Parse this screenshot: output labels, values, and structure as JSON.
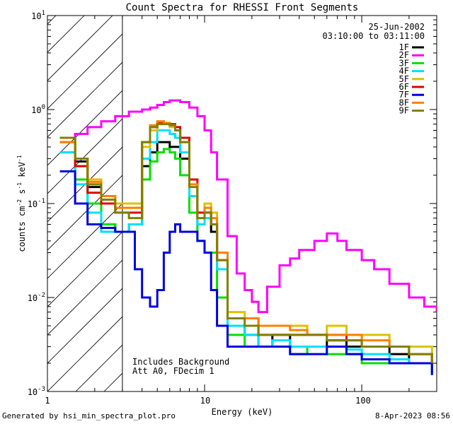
{
  "chart_data": {
    "type": "line",
    "title": "Count Spectra for RHESSI Front Segments",
    "xlabel": "Energy (keV)",
    "ylabel": "counts cm-2 s-1 keV-1",
    "xscale": "log",
    "yscale": "log",
    "xlim": [
      1,
      300
    ],
    "ylim": [
      0.001,
      10
    ],
    "x_tick_labels": [
      "1",
      "10",
      "100"
    ],
    "y_tick_labels": [
      "10-3",
      "10-2",
      "10-1",
      "100",
      "101"
    ],
    "date": "25-Jun-2002",
    "time_range": "03:10:00 to 03:11:00",
    "annotation_lines": [
      "Includes Background",
      "Att A0, FDecim 1"
    ],
    "hatched_range": [
      1,
      3
    ],
    "series": [
      {
        "name": "1F",
        "color": "#000000",
        "x": [
          1.2,
          1.5,
          1.8,
          2.2,
          2.7,
          3.3,
          4.0,
          4.5,
          5.0,
          5.5,
          6.0,
          6.5,
          7.0,
          8.0,
          9.0,
          10.0,
          11.0,
          12.0,
          14,
          18,
          22,
          27,
          35,
          45,
          60,
          80,
          100,
          150,
          200,
          280
        ],
        "y": [
          0.5,
          0.28,
          0.15,
          0.06,
          0.05,
          0.06,
          0.25,
          0.35,
          0.45,
          0.45,
          0.4,
          0.4,
          0.3,
          0.12,
          0.06,
          0.08,
          0.05,
          0.02,
          0.005,
          0.004,
          0.003,
          0.004,
          0.003,
          0.003,
          0.0035,
          0.003,
          0.003,
          0.0025,
          0.002,
          0.0015
        ]
      },
      {
        "name": "2F",
        "color": "#ff00ff",
        "x": [
          1.2,
          1.5,
          1.8,
          2.2,
          2.7,
          3.3,
          4.0,
          4.5,
          5.0,
          5.5,
          6.0,
          6.5,
          7.0,
          8.0,
          9.0,
          10.0,
          11.0,
          12.0,
          14,
          16,
          18,
          20,
          22,
          25,
          30,
          35,
          40,
          50,
          60,
          70,
          80,
          100,
          120,
          150,
          200,
          250,
          300
        ],
        "y": [
          0.5,
          0.55,
          0.65,
          0.75,
          0.85,
          0.95,
          1.0,
          1.05,
          1.12,
          1.2,
          1.25,
          1.25,
          1.2,
          1.05,
          0.85,
          0.6,
          0.35,
          0.18,
          0.045,
          0.018,
          0.012,
          0.009,
          0.007,
          0.013,
          0.022,
          0.026,
          0.032,
          0.04,
          0.048,
          0.04,
          0.032,
          0.025,
          0.02,
          0.014,
          0.01,
          0.008,
          0.007
        ]
      },
      {
        "name": "3F",
        "color": "#00e000",
        "x": [
          1.2,
          1.5,
          1.8,
          2.2,
          2.7,
          3.3,
          4.0,
          4.5,
          5.0,
          5.5,
          6.0,
          6.5,
          7.0,
          8.0,
          9.0,
          10.0,
          11.0,
          12.0,
          14,
          18,
          22,
          27,
          35,
          45,
          60,
          80,
          100,
          150,
          200,
          280
        ],
        "y": [
          0.35,
          0.18,
          0.1,
          0.06,
          0.05,
          0.06,
          0.18,
          0.28,
          0.35,
          0.38,
          0.35,
          0.3,
          0.2,
          0.08,
          0.04,
          0.03,
          0.03,
          0.01,
          0.004,
          0.003,
          0.003,
          0.003,
          0.0025,
          0.003,
          0.0025,
          0.0025,
          0.002,
          0.002,
          0.002,
          0.0015
        ]
      },
      {
        "name": "4F",
        "color": "#00e0ff",
        "x": [
          1.2,
          1.5,
          1.8,
          2.2,
          2.7,
          3.3,
          4.0,
          4.5,
          5.0,
          5.5,
          6.0,
          6.5,
          7.0,
          8.0,
          9.0,
          10.0,
          11.0,
          12.0,
          14,
          18,
          22,
          27,
          35,
          45,
          60,
          80,
          100,
          150,
          200,
          280
        ],
        "y": [
          0.35,
          0.16,
          0.08,
          0.05,
          0.05,
          0.06,
          0.3,
          0.45,
          0.6,
          0.6,
          0.55,
          0.5,
          0.35,
          0.12,
          0.06,
          0.07,
          0.06,
          0.02,
          0.005,
          0.004,
          0.003,
          0.0035,
          0.003,
          0.003,
          0.003,
          0.0028,
          0.0025,
          0.0022,
          0.002,
          0.0015
        ]
      },
      {
        "name": "5F",
        "color": "#e0c000",
        "x": [
          1.2,
          1.5,
          1.8,
          2.2,
          2.7,
          3.3,
          4.0,
          4.5,
          5.0,
          5.5,
          6.0,
          6.5,
          7.0,
          8.0,
          9.0,
          10.0,
          11.0,
          12.0,
          14,
          18,
          22,
          27,
          35,
          45,
          60,
          80,
          100,
          150,
          200,
          280
        ],
        "y": [
          0.45,
          0.3,
          0.18,
          0.12,
          0.1,
          0.1,
          0.4,
          0.6,
          0.7,
          0.7,
          0.65,
          0.6,
          0.45,
          0.16,
          0.08,
          0.1,
          0.08,
          0.03,
          0.007,
          0.006,
          0.005,
          0.005,
          0.005,
          0.004,
          0.005,
          0.004,
          0.004,
          0.003,
          0.003,
          0.002
        ]
      },
      {
        "name": "6F",
        "color": "#e00000",
        "x": [
          1.2,
          1.5,
          1.8,
          2.2,
          2.7,
          3.3,
          4.0,
          4.5,
          5.0,
          5.5,
          6.0,
          6.5,
          7.0,
          8.0,
          9.0,
          10.0,
          11.0,
          12.0,
          14,
          18,
          22,
          27,
          35,
          45,
          60,
          80,
          100,
          150,
          200,
          280
        ],
        "y": [
          0.45,
          0.25,
          0.13,
          0.1,
          0.08,
          0.08,
          0.45,
          0.65,
          0.72,
          0.72,
          0.7,
          0.65,
          0.5,
          0.18,
          0.08,
          0.08,
          0.06,
          0.025,
          0.006,
          0.006,
          0.004,
          0.004,
          0.004,
          0.004,
          0.004,
          0.0035,
          0.003,
          0.003,
          0.0025,
          0.002
        ]
      },
      {
        "name": "7F",
        "color": "#0000e0",
        "x": [
          1.2,
          1.5,
          1.8,
          2.2,
          2.7,
          3.3,
          3.6,
          4.0,
          4.5,
          5.0,
          5.5,
          6.0,
          6.5,
          7.0,
          8.0,
          9.0,
          10.0,
          11.0,
          12.0,
          14,
          18,
          22,
          27,
          35,
          45,
          60,
          80,
          100,
          150,
          200,
          280
        ],
        "y": [
          0.22,
          0.1,
          0.06,
          0.055,
          0.05,
          0.05,
          0.02,
          0.01,
          0.008,
          0.012,
          0.03,
          0.05,
          0.06,
          0.05,
          0.05,
          0.04,
          0.03,
          0.012,
          0.005,
          0.003,
          0.003,
          0.003,
          0.003,
          0.0025,
          0.0025,
          0.003,
          0.0025,
          0.0022,
          0.002,
          0.002,
          0.0015
        ]
      },
      {
        "name": "8F",
        "color": "#ff8000",
        "x": [
          1.2,
          1.5,
          1.8,
          2.2,
          2.7,
          3.3,
          4.0,
          4.5,
          5.0,
          5.5,
          6.0,
          6.5,
          7.0,
          8.0,
          9.0,
          10.0,
          11.0,
          12.0,
          14,
          18,
          22,
          27,
          35,
          45,
          60,
          80,
          100,
          150,
          200,
          280
        ],
        "y": [
          0.45,
          0.3,
          0.17,
          0.12,
          0.09,
          0.09,
          0.45,
          0.68,
          0.75,
          0.72,
          0.68,
          0.6,
          0.45,
          0.16,
          0.07,
          0.09,
          0.07,
          0.03,
          0.006,
          0.006,
          0.005,
          0.005,
          0.0045,
          0.004,
          0.004,
          0.004,
          0.0035,
          0.003,
          0.0025,
          0.002
        ]
      },
      {
        "name": "9F",
        "color": "#808000",
        "x": [
          1.2,
          1.5,
          1.8,
          2.2,
          2.7,
          3.3,
          4.0,
          4.5,
          5.0,
          5.5,
          6.0,
          6.5,
          7.0,
          8.0,
          9.0,
          10.0,
          11.0,
          12.0,
          14,
          18,
          22,
          27,
          35,
          45,
          60,
          80,
          100,
          150,
          200,
          280
        ],
        "y": [
          0.5,
          0.3,
          0.16,
          0.11,
          0.08,
          0.07,
          0.45,
          0.65,
          0.7,
          0.7,
          0.68,
          0.6,
          0.45,
          0.15,
          0.07,
          0.08,
          0.06,
          0.025,
          0.006,
          0.005,
          0.004,
          0.004,
          0.004,
          0.004,
          0.0035,
          0.0035,
          0.003,
          0.003,
          0.0025,
          0.002
        ]
      }
    ]
  },
  "footer": {
    "generated_by": "Generated by hsi_min_spectra_plot.pro",
    "timestamp": "8-Apr-2023 08:56"
  }
}
